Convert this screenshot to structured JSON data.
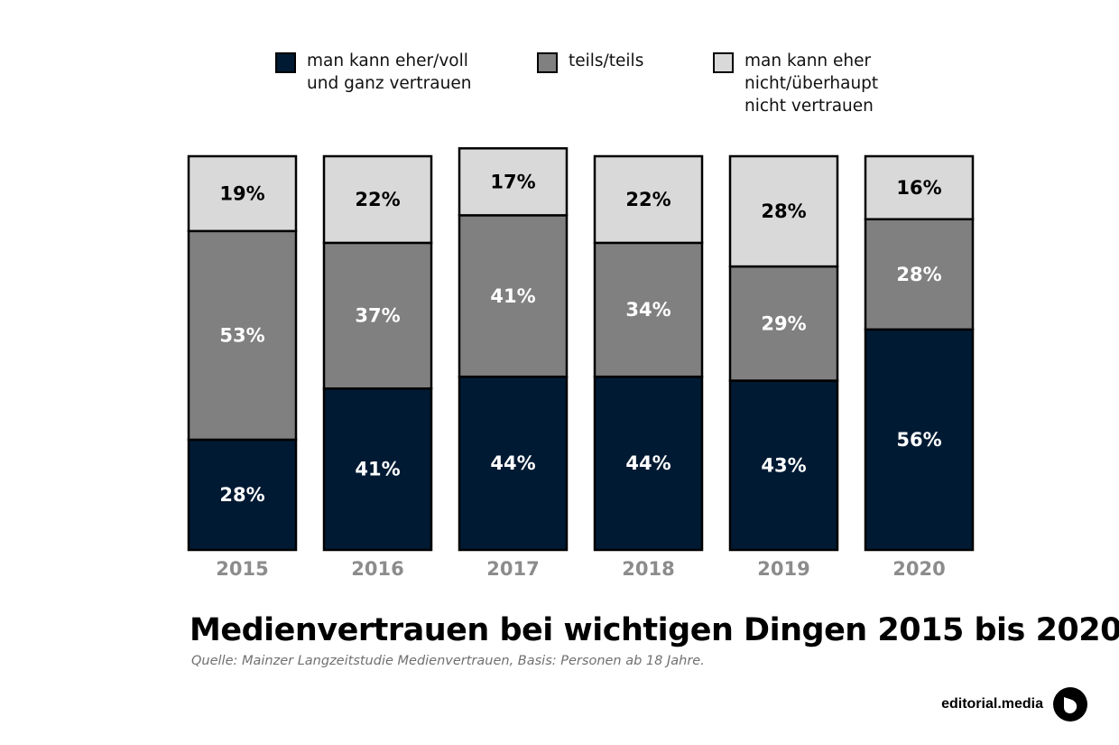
{
  "chart_data": {
    "type": "bar",
    "stacked": true,
    "title": "Medienvertrauen bei wichtigen Dingen 2015 bis 2020",
    "source": "Quelle: Mainzer Langzeitstudie Medienvertrauen, Basis: Personen ab 18 Jahre.",
    "categories": [
      "2015",
      "2016",
      "2017",
      "2018",
      "2019",
      "2020"
    ],
    "ylim": [
      0,
      100
    ],
    "grid": false,
    "legend_position": "top",
    "series": [
      {
        "name": "man kann eher/voll\nund ganz vertrauen",
        "color": "#001a33",
        "label_color": "#ffffff",
        "values": [
          28,
          41,
          44,
          44,
          43,
          56
        ],
        "labels": [
          "28%",
          "41%",
          "44%",
          "44%",
          "43%",
          "56%"
        ]
      },
      {
        "name": "teils/teils",
        "color": "#808080",
        "label_color": "#ffffff",
        "values": [
          53,
          37,
          41,
          34,
          29,
          28
        ],
        "labels": [
          "53%",
          "37%",
          "41%",
          "34%",
          "29%",
          "28%"
        ]
      },
      {
        "name": "man kann eher\nnicht/überhaupt\nnicht vertrauen",
        "color": "#d9d9d9",
        "label_color": "#000000",
        "values": [
          19,
          22,
          17,
          22,
          28,
          16
        ],
        "labels": [
          "19%",
          "22%",
          "17%",
          "22%",
          "28%",
          "16%"
        ]
      }
    ]
  },
  "brand": {
    "name": "editorial.media",
    "logo_icon": "editorial-media-logo-icon"
  }
}
